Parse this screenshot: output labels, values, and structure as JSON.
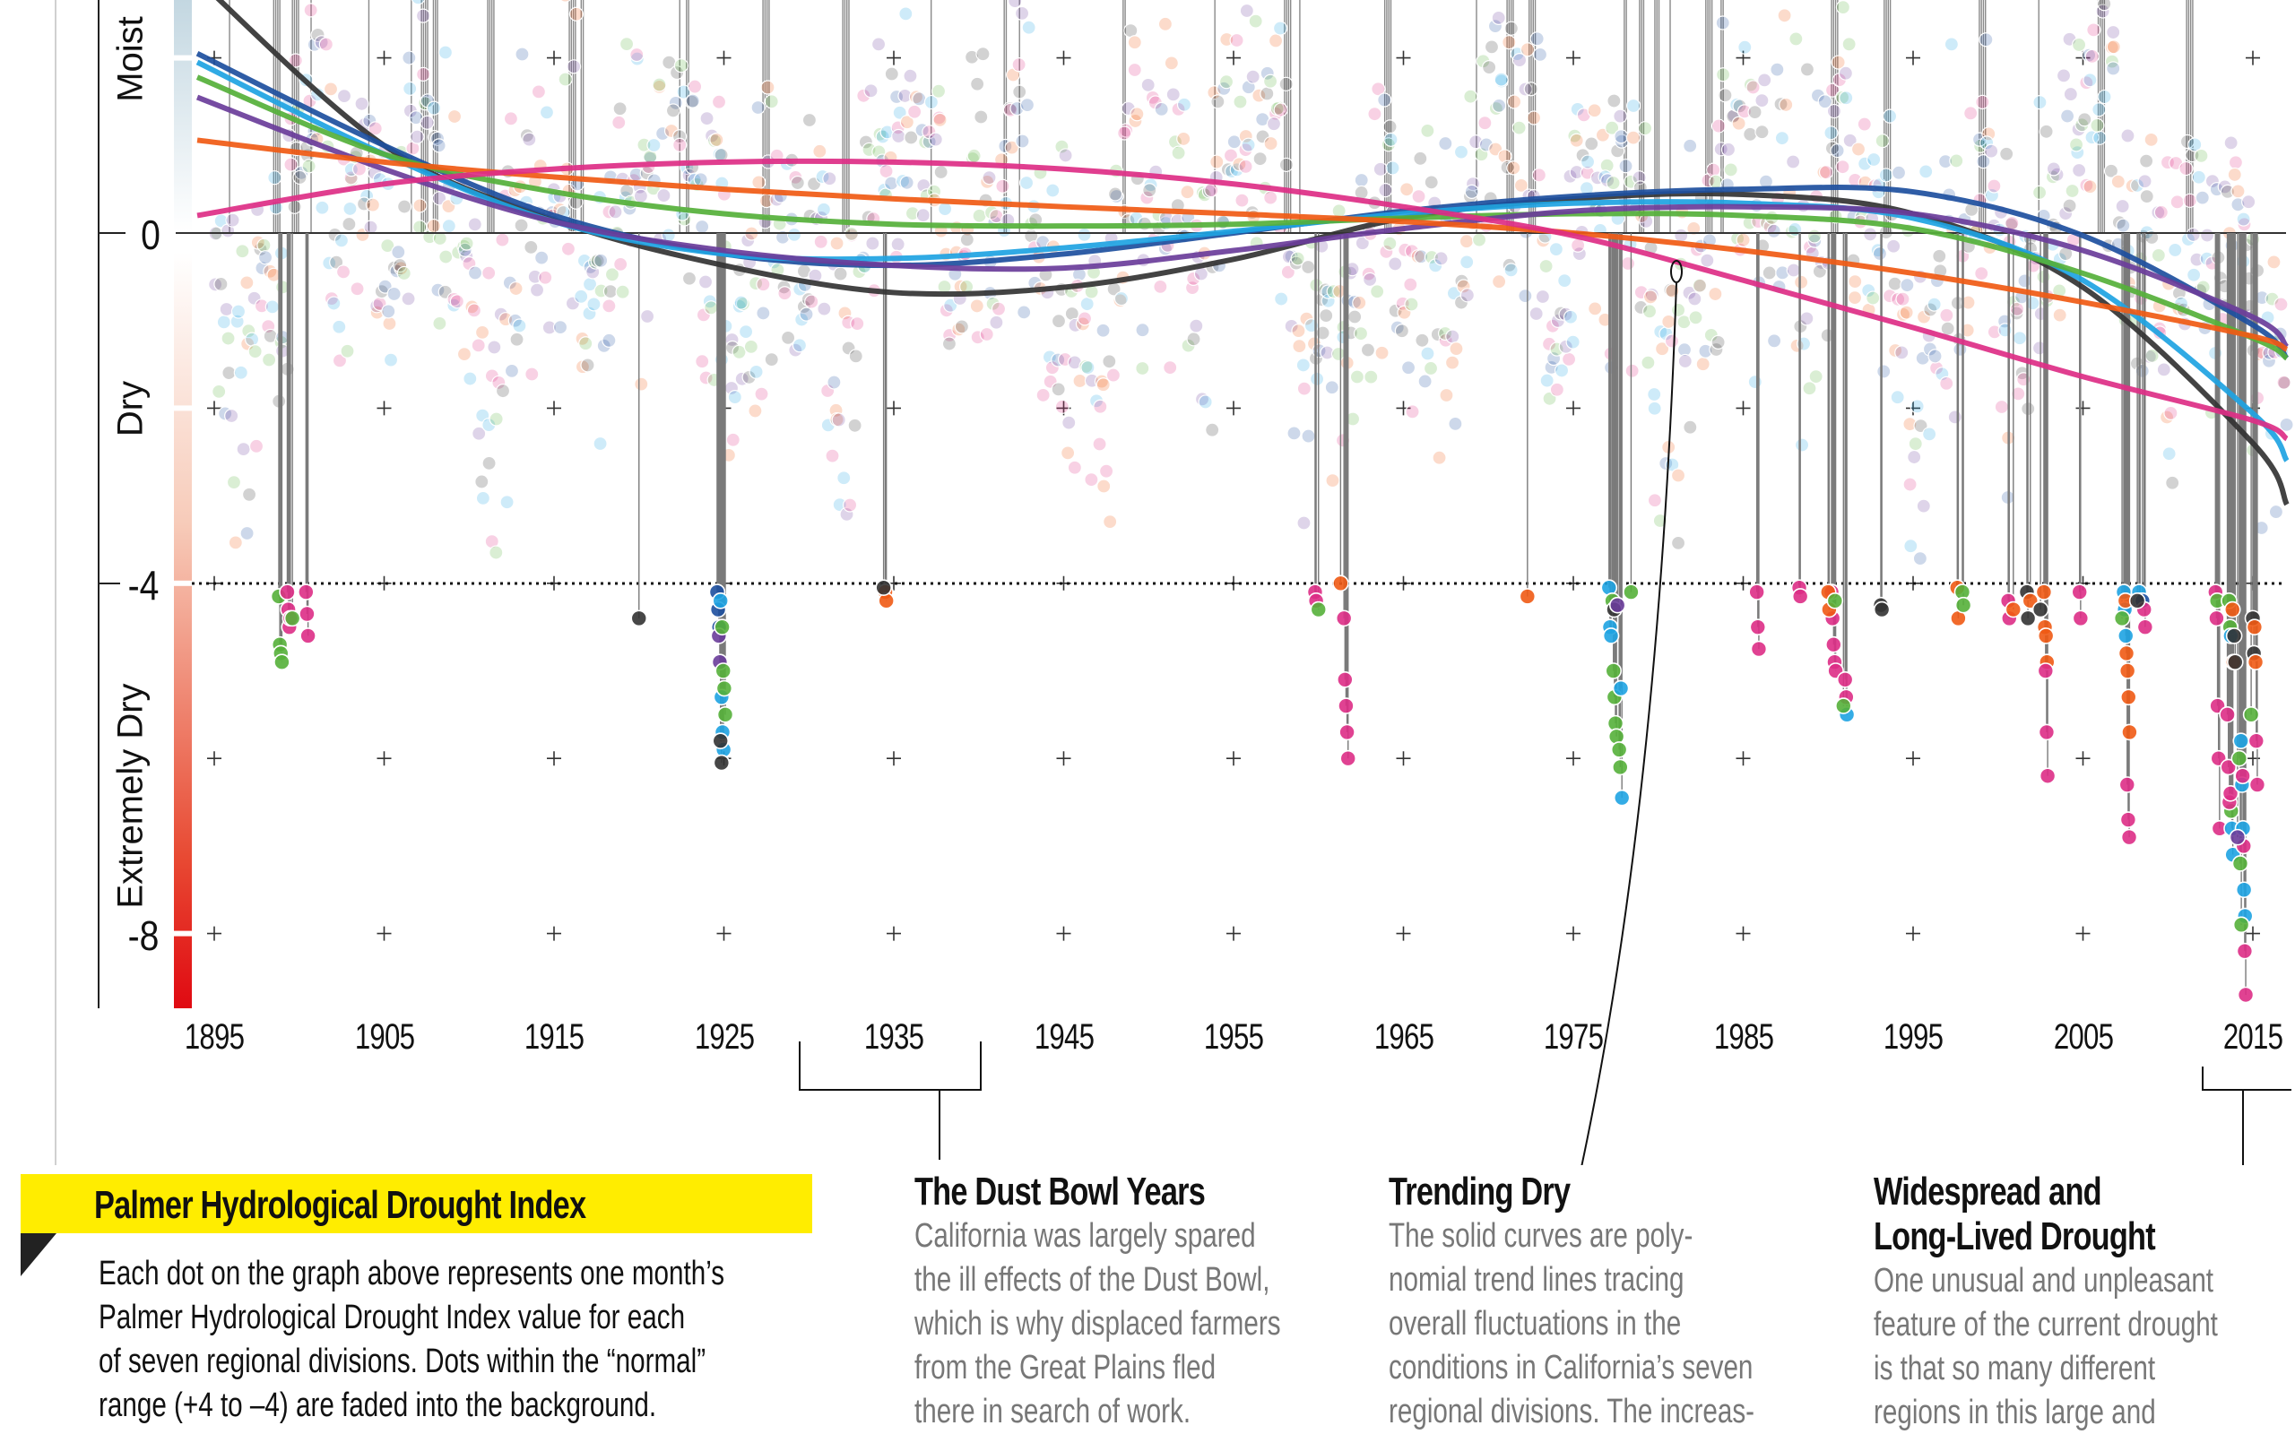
{
  "chart_data": {
    "type": "scatter",
    "title": "",
    "xlabel": "",
    "ylabel": "",
    "xlim": [
      1894,
      2017
    ],
    "ylim": [
      -8.8,
      2.7
    ],
    "x_ticks": [
      "1895",
      "1905",
      "1915",
      "1925",
      "1935",
      "1945",
      "1955",
      "1965",
      "1975",
      "1985",
      "1995",
      "2005",
      "2015"
    ],
    "y_ticks": [
      "0",
      "-4",
      "-8"
    ],
    "y_category_labels": {
      "moist": "Moist",
      "dry": "Dry",
      "extremely_dry": "Extremely Dry"
    },
    "threshold": -4,
    "normal_range_faded": [
      -4,
      4
    ],
    "grid": "cross markers",
    "series_colors": [
      "#333333",
      "#1d4f9e",
      "#1ea3e2",
      "#55b03a",
      "#6a3d9a",
      "#f05a14",
      "#dd2e86"
    ],
    "trend_lines": {
      "x": [
        1894,
        1905,
        1915,
        1925,
        1935,
        1945,
        1955,
        1965,
        1975,
        1985,
        1995,
        2005,
        2015,
        2017
      ],
      "series": [
        {
          "values": [
            2.9,
            1.0,
            0.15,
            -0.37,
            -0.68,
            -0.62,
            -0.3,
            0.17,
            0.39,
            0.44,
            0.22,
            -0.62,
            -2.4,
            -3.1
          ]
        },
        {
          "values": [
            2.05,
            1.0,
            0.2,
            -0.24,
            -0.37,
            -0.24,
            0.0,
            0.25,
            0.42,
            0.5,
            0.47,
            -0.03,
            -1.05,
            -1.43
          ]
        },
        {
          "values": [
            1.95,
            0.9,
            0.13,
            -0.24,
            -0.29,
            -0.17,
            0.02,
            0.22,
            0.34,
            0.34,
            0.17,
            -0.54,
            -2.06,
            -2.6
          ]
        },
        {
          "values": [
            1.78,
            0.9,
            0.47,
            0.22,
            0.1,
            0.08,
            0.1,
            0.17,
            0.22,
            0.2,
            0.05,
            -0.46,
            -1.2,
            -1.43
          ]
        },
        {
          "values": [
            1.55,
            0.73,
            0.13,
            -0.2,
            -0.37,
            -0.4,
            -0.2,
            0.05,
            0.25,
            0.3,
            0.22,
            -0.2,
            -0.96,
            -1.3
          ]
        },
        {
          "values": [
            1.06,
            0.81,
            0.64,
            0.5,
            0.39,
            0.3,
            0.22,
            0.13,
            0.0,
            -0.2,
            -0.46,
            -0.79,
            -1.18,
            -1.33
          ]
        },
        {
          "values": [
            0.2,
            0.56,
            0.73,
            0.81,
            0.81,
            0.73,
            0.56,
            0.3,
            -0.03,
            -0.54,
            -1.08,
            -1.64,
            -2.14,
            -2.35
          ]
        }
      ]
    },
    "moist_extreme_years": [
      1895.9,
      1898.5,
      1899.6,
      1900.7,
      1904.1,
      1906.6,
      1907.2,
      1907.9,
      1911.1,
      1915.9,
      1916.6,
      1922.4,
      1922.8,
      1927.3,
      1932,
      1937.2,
      1941.5,
      1942.4,
      1948.5,
      1953.9,
      1958,
      1958.9,
      1963.9,
      1969.3,
      1971.1,
      1972.4,
      1978,
      1978.9,
      1979.8,
      1980.7,
      1982.8,
      1983.7,
      1990.2,
      1993.3,
      1998.9,
      2002.4,
      2005.9,
      2011.1
    ],
    "extreme_dry_points": [
      {
        "year": 1898.8,
        "series": 3,
        "values": [
          -4.15,
          -4.7,
          -4.8,
          -4.9
        ]
      },
      {
        "year": 1899.3,
        "series": 6,
        "values": [
          -4.1,
          -4.3,
          -4.5,
          -4.4
        ]
      },
      {
        "year": 1899.6,
        "series": 3,
        "values": [
          -4.4
        ]
      },
      {
        "year": 1900.4,
        "series": 6,
        "values": [
          -4.1,
          -4.35,
          -4.6
        ]
      },
      {
        "year": 1920.0,
        "series": 0,
        "values": [
          -4.4
        ]
      },
      {
        "year": 1924.6,
        "series": 1,
        "values": [
          -4.1,
          -4.3,
          -4.5
        ]
      },
      {
        "year": 1924.7,
        "series": 4,
        "values": [
          -4.6,
          -4.9
        ]
      },
      {
        "year": 1924.8,
        "series": 2,
        "values": [
          -4.2,
          -5.3,
          -5.7,
          -5.9
        ]
      },
      {
        "year": 1924.9,
        "series": 3,
        "values": [
          -4.5,
          -5.0,
          -5.2,
          -5.5
        ]
      },
      {
        "year": 1924.8,
        "series": 0,
        "values": [
          -5.8,
          -6.05
        ]
      },
      {
        "year": 1934.5,
        "series": 5,
        "values": [
          -4.1,
          -4.2
        ]
      },
      {
        "year": 1934.4,
        "series": 0,
        "values": [
          -4.05
        ]
      },
      {
        "year": 1959.8,
        "series": 6,
        "values": [
          -4.1,
          -4.2
        ]
      },
      {
        "year": 1960.0,
        "series": 3,
        "values": [
          -4.3
        ]
      },
      {
        "year": 1961.3,
        "series": 5,
        "values": [
          -4.0
        ]
      },
      {
        "year": 1961.5,
        "series": 6,
        "values": [
          -4.4,
          -5.1,
          -5.4,
          -5.7,
          -6.0
        ]
      },
      {
        "year": 1972.3,
        "series": 5,
        "values": [
          -4.15
        ]
      },
      {
        "year": 1977.1,
        "series": 2,
        "values": [
          -4.05,
          -4.5,
          -4.6
        ]
      },
      {
        "year": 1977.3,
        "series": 3,
        "values": [
          -4.2,
          -5.0,
          -5.3,
          -5.6,
          -5.75
        ]
      },
      {
        "year": 1977.4,
        "series": 0,
        "values": [
          -4.3
        ]
      },
      {
        "year": 1977.8,
        "series": 2,
        "values": [
          -5.2,
          -6.45
        ]
      },
      {
        "year": 1977.7,
        "series": 3,
        "values": [
          -5.9,
          -6.1
        ]
      },
      {
        "year": 1977.6,
        "series": 4,
        "values": [
          -4.25
        ]
      },
      {
        "year": 1978.4,
        "series": 3,
        "values": [
          -4.1
        ]
      },
      {
        "year": 1985.8,
        "series": 6,
        "values": [
          -4.1,
          -4.5,
          -4.75
        ]
      },
      {
        "year": 1988.3,
        "series": 6,
        "values": [
          -4.05,
          -4.15
        ]
      },
      {
        "year": 1990.2,
        "series": 6,
        "values": [
          -4.1,
          -4.4,
          -4.7,
          -4.9,
          -5.0
        ]
      },
      {
        "year": 1990.0,
        "series": 5,
        "values": [
          -4.1,
          -4.3
        ]
      },
      {
        "year": 1990.4,
        "series": 3,
        "values": [
          -4.2
        ]
      },
      {
        "year": 1991.0,
        "series": 6,
        "values": [
          -5.1,
          -5.3
        ]
      },
      {
        "year": 1991.1,
        "series": 2,
        "values": [
          -5.5
        ]
      },
      {
        "year": 1990.9,
        "series": 3,
        "values": [
          -5.4
        ]
      },
      {
        "year": 1993.1,
        "series": 0,
        "values": [
          -4.25,
          -4.3
        ]
      },
      {
        "year": 1997.6,
        "series": 5,
        "values": [
          -4.05,
          -4.4
        ]
      },
      {
        "year": 1997.9,
        "series": 3,
        "values": [
          -4.1,
          -4.25
        ]
      },
      {
        "year": 2000.6,
        "series": 6,
        "values": [
          -4.2,
          -4.4
        ]
      },
      {
        "year": 2000.9,
        "series": 5,
        "values": [
          -4.3
        ]
      },
      {
        "year": 2001.7,
        "series": 0,
        "values": [
          -4.1,
          -4.4
        ]
      },
      {
        "year": 2001.9,
        "series": 5,
        "values": [
          -4.2
        ]
      },
      {
        "year": 2002.7,
        "series": 5,
        "values": [
          -4.1,
          -4.5,
          -4.6,
          -4.9
        ]
      },
      {
        "year": 2002.8,
        "series": 6,
        "values": [
          -5.0,
          -5.7,
          -6.2
        ]
      },
      {
        "year": 2002.5,
        "series": 0,
        "values": [
          -4.3
        ]
      },
      {
        "year": 2004.8,
        "series": 6,
        "values": [
          -4.1,
          -4.4
        ]
      },
      {
        "year": 2007.4,
        "series": 2,
        "values": [
          -4.1,
          -4.3,
          -4.6
        ]
      },
      {
        "year": 2007.5,
        "series": 5,
        "values": [
          -4.2,
          -4.8,
          -5.0,
          -5.3,
          -5.7
        ]
      },
      {
        "year": 2007.6,
        "series": 6,
        "values": [
          -6.3,
          -6.7,
          -6.9
        ]
      },
      {
        "year": 2007.3,
        "series": 3,
        "values": [
          -4.4
        ]
      },
      {
        "year": 2008.3,
        "series": 2,
        "values": [
          -4.1,
          -4.2
        ]
      },
      {
        "year": 2008.5,
        "series": 1,
        "values": [
          -4.2
        ]
      },
      {
        "year": 2008.6,
        "series": 6,
        "values": [
          -4.3,
          -4.5
        ]
      },
      {
        "year": 2008.2,
        "series": 0,
        "values": [
          -4.2
        ]
      },
      {
        "year": 2012.8,
        "series": 6,
        "values": [
          -4.1,
          -4.4,
          -5.4,
          -6.0,
          -6.8
        ]
      },
      {
        "year": 2012.9,
        "series": 3,
        "values": [
          -4.2
        ]
      },
      {
        "year": 2013.6,
        "series": 3,
        "values": [
          -4.2,
          -4.5,
          -6.6
        ]
      },
      {
        "year": 2013.7,
        "series": 2,
        "values": [
          -4.6,
          -6.8,
          -7.1
        ]
      },
      {
        "year": 2013.8,
        "series": 5,
        "values": [
          -4.3,
          -4.9
        ]
      },
      {
        "year": 2013.5,
        "series": 6,
        "values": [
          -5.5,
          -6.1,
          -6.5,
          -6.4
        ]
      },
      {
        "year": 2013.9,
        "series": 0,
        "values": [
          -4.6,
          -4.9
        ]
      },
      {
        "year": 2014.3,
        "series": 2,
        "values": [
          -5.8,
          -6.3,
          -6.8,
          -7.5,
          -7.8
        ]
      },
      {
        "year": 2014.2,
        "series": 3,
        "values": [
          -6.0,
          -7.2,
          -7.9
        ]
      },
      {
        "year": 2014.4,
        "series": 6,
        "values": [
          -6.2,
          -7.0,
          -8.2,
          -8.7
        ]
      },
      {
        "year": 2014.1,
        "series": 4,
        "values": [
          -6.9
        ]
      },
      {
        "year": 2015.0,
        "series": 0,
        "values": [
          -4.4,
          -4.8
        ]
      },
      {
        "year": 2015.1,
        "series": 5,
        "values": [
          -4.5,
          -4.9
        ]
      },
      {
        "year": 2015.2,
        "series": 6,
        "values": [
          -5.8,
          -6.3
        ]
      },
      {
        "year": 2014.9,
        "series": 3,
        "values": [
          -5.5
        ]
      }
    ]
  },
  "legend": {
    "title": "Palmer Hydrological Drought Index",
    "lines": [
      "Each dot on the graph above represents one month’s",
      "Palmer Hydrological Drought Index value for each",
      "of seven regional divisions. Dots within the “normal”",
      "range (+4 to –4) are faded into the background."
    ]
  },
  "annotations": [
    {
      "heading": [
        "The Dust Bowl Years"
      ],
      "lines": [
        "California was largely spared",
        "the ill effects of the Dust Bowl,",
        "which is why displaced farmers",
        "from the Great Plains fled",
        "there in search of work."
      ]
    },
    {
      "heading": [
        "Trending Dry"
      ],
      "lines": [
        "The solid curves are poly-",
        "nomial trend lines tracing",
        "overall fluctuations in the",
        "conditions in California’s seven",
        "regional divisions. The increas-"
      ]
    },
    {
      "heading": [
        "Widespread and",
        "Long-Lived Drought"
      ],
      "lines": [
        "One unusual and unpleasant",
        "feature of the current drought",
        "is that so many different",
        "regions in this large and"
      ]
    }
  ]
}
